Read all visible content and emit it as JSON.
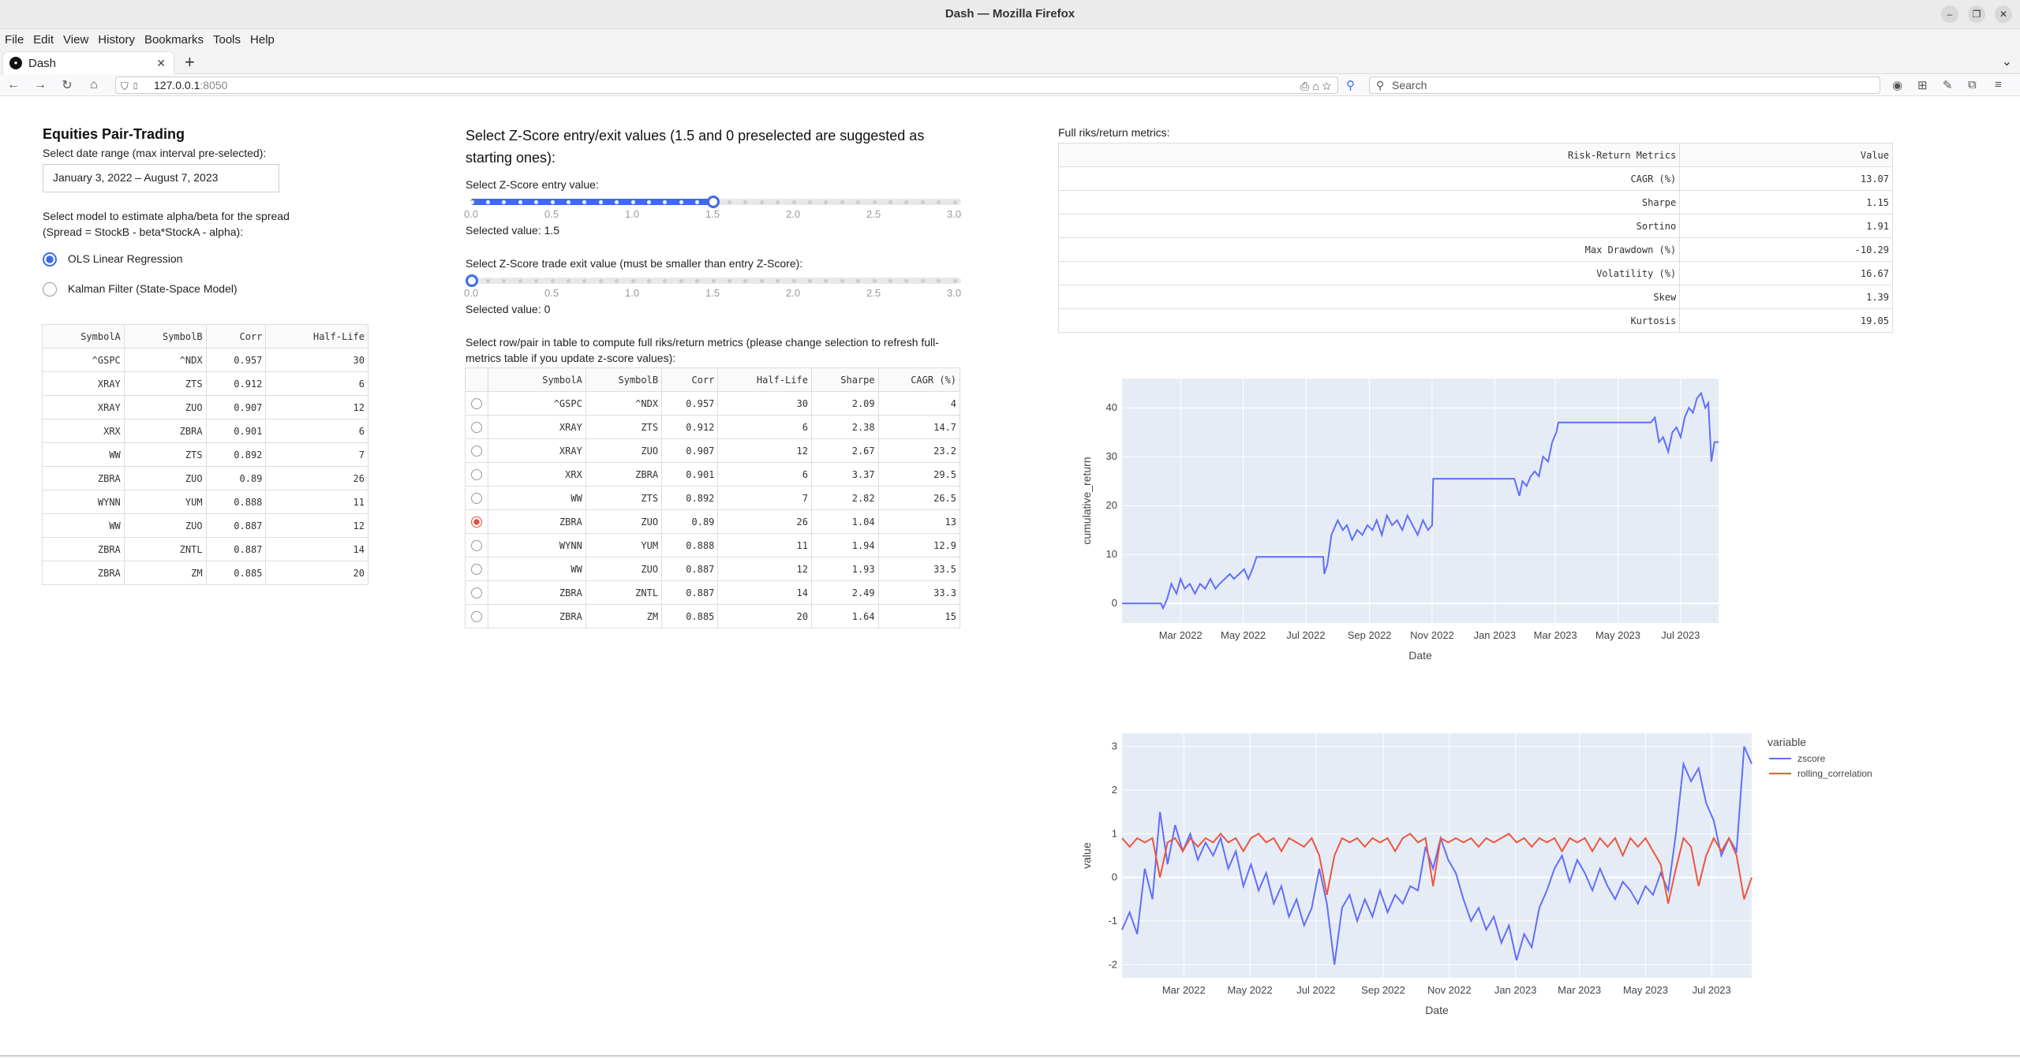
{
  "window": {
    "title": "Dash — Mozilla Firefox",
    "tab_title": "Dash",
    "url_host": "127.0.0.1",
    "url_port": ":8050",
    "search_placeholder": "Search"
  },
  "menu": [
    "File",
    "Edit",
    "View",
    "History",
    "Bookmarks",
    "Tools",
    "Help"
  ],
  "left": {
    "title": "Equities Pair-Trading",
    "date_label": "Select date range (max interval pre-selected):",
    "date_value": "January 3, 2022 – August 7, 2023",
    "model_label_1": "Select model to estimate alpha/beta for the spread",
    "model_label_2": "(Spread = StockB - beta*StockA - alpha):",
    "model_options": [
      "OLS Linear Regression",
      "Kalman Filter (State-Space Model)"
    ],
    "model_selected": 0,
    "table_headers": [
      "SymbolA",
      "SymbolB",
      "Corr",
      "Half-Life"
    ],
    "table_rows": [
      [
        "^GSPC",
        "^NDX",
        "0.957",
        "30"
      ],
      [
        "XRAY",
        "ZTS",
        "0.912",
        "6"
      ],
      [
        "XRAY",
        "ZUO",
        "0.907",
        "12"
      ],
      [
        "XRX",
        "ZBRA",
        "0.901",
        "6"
      ],
      [
        "WW",
        "ZTS",
        "0.892",
        "7"
      ],
      [
        "ZBRA",
        "ZUO",
        "0.89",
        "26"
      ],
      [
        "WYNN",
        "YUM",
        "0.888",
        "11"
      ],
      [
        "WW",
        "ZUO",
        "0.887",
        "12"
      ],
      [
        "ZBRA",
        "ZNTL",
        "0.887",
        "14"
      ],
      [
        "ZBRA",
        "ZM",
        "0.885",
        "20"
      ]
    ]
  },
  "middle": {
    "zscore_title": "Select Z-Score entry/exit values (1.5 and 0 preselected are suggested as starting ones):",
    "entry_label": "Select Z-Score entry value:",
    "entry_value": 1.5,
    "entry_selected_text": "Selected value: 1.5",
    "exit_label": "Select Z-Score trade exit value (must be smaller than entry Z-Score):",
    "exit_value": 0,
    "exit_selected_text": "Selected value: 0",
    "slider_ticks": [
      "0.0",
      "0.5",
      "1.0",
      "1.5",
      "2.0",
      "2.5",
      "3.0"
    ],
    "select_label": "Select row/pair in table to compute full riks/return metrics (please change selection to refresh full-metrics table if you update z-score values):",
    "table_headers": [
      "SymbolA",
      "SymbolB",
      "Corr",
      "Half-Life",
      "Sharpe",
      "CAGR (%)"
    ],
    "table_rows": [
      [
        "^GSPC",
        "^NDX",
        "0.957",
        "30",
        "2.09",
        "4"
      ],
      [
        "XRAY",
        "ZTS",
        "0.912",
        "6",
        "2.38",
        "14.7"
      ],
      [
        "XRAY",
        "ZUO",
        "0.907",
        "12",
        "2.67",
        "23.2"
      ],
      [
        "XRX",
        "ZBRA",
        "0.901",
        "6",
        "3.37",
        "29.5"
      ],
      [
        "WW",
        "ZTS",
        "0.892",
        "7",
        "2.82",
        "26.5"
      ],
      [
        "ZBRA",
        "ZUO",
        "0.89",
        "26",
        "1.04",
        "13"
      ],
      [
        "WYNN",
        "YUM",
        "0.888",
        "11",
        "1.94",
        "12.9"
      ],
      [
        "WW",
        "ZUO",
        "0.887",
        "12",
        "1.93",
        "33.5"
      ],
      [
        "ZBRA",
        "ZNTL",
        "0.887",
        "14",
        "2.49",
        "33.3"
      ],
      [
        "ZBRA",
        "ZM",
        "0.885",
        "20",
        "1.64",
        "15"
      ]
    ],
    "selected_row": 5
  },
  "right": {
    "metrics_label": "Full riks/return metrics:",
    "metrics_headers": [
      "Risk-Return Metrics",
      "Value"
    ],
    "metrics_rows": [
      [
        "CAGR (%)",
        "13.07"
      ],
      [
        "Sharpe",
        "1.15"
      ],
      [
        "Sortino",
        "1.91"
      ],
      [
        "Max Drawdown (%)",
        "-10.29"
      ],
      [
        "Volatility (%)",
        "16.67"
      ],
      [
        "Skew",
        "1.39"
      ],
      [
        "Kurtosis",
        "19.05"
      ]
    ]
  },
  "colors": {
    "accent": "#3f6ae8",
    "plot_bg": "#e5ecf6",
    "zscore": "#636efa",
    "rolling_correlation": "#ef553b"
  },
  "chart_data": [
    {
      "type": "line",
      "title": "",
      "xlabel": "Date",
      "ylabel": "cumulative_return",
      "xlim": [
        "2022-01-03",
        "2023-08-07"
      ],
      "ylim": [
        -4,
        46
      ],
      "x_ticks": [
        "Mar 2022",
        "May 2022",
        "Jul 2022",
        "Sep 2022",
        "Nov 2022",
        "Jan 2023",
        "Mar 2023",
        "May 2023",
        "Jul 2023"
      ],
      "x_tick_dates": [
        "2022-03-01",
        "2022-05-01",
        "2022-07-01",
        "2022-09-01",
        "2022-11-01",
        "2023-01-01",
        "2023-03-01",
        "2023-05-01",
        "2023-07-01"
      ],
      "y_ticks": [
        0,
        10,
        20,
        30,
        40
      ],
      "series": [
        {
          "x": [
            "2022-01-03",
            "2022-02-10",
            "2022-02-12",
            "2022-02-16",
            "2022-02-20",
            "2022-02-25",
            "2022-03-01",
            "2022-03-05",
            "2022-03-10",
            "2022-03-15",
            "2022-03-20",
            "2022-03-25",
            "2022-03-30",
            "2022-04-04",
            "2022-04-08",
            "2022-04-13",
            "2022-04-18",
            "2022-04-22",
            "2022-04-27",
            "2022-05-02",
            "2022-05-06",
            "2022-05-10",
            "2022-05-14",
            "2022-07-18",
            "2022-07-19",
            "2022-07-22",
            "2022-07-26",
            "2022-08-01",
            "2022-08-06",
            "2022-08-10",
            "2022-08-15",
            "2022-08-20",
            "2022-08-25",
            "2022-08-30",
            "2022-09-04",
            "2022-09-08",
            "2022-09-13",
            "2022-09-18",
            "2022-09-23",
            "2022-09-28",
            "2022-10-03",
            "2022-10-08",
            "2022-10-13",
            "2022-10-18",
            "2022-10-23",
            "2022-10-28",
            "2022-11-01",
            "2022-11-02",
            "2023-01-20",
            "2023-01-25",
            "2023-01-28",
            "2023-02-01",
            "2023-02-05",
            "2023-02-09",
            "2023-02-13",
            "2023-02-17",
            "2023-02-22",
            "2023-02-26",
            "2023-03-02",
            "2023-03-04",
            "2023-06-02",
            "2023-06-06",
            "2023-06-10",
            "2023-06-14",
            "2023-06-19",
            "2023-06-23",
            "2023-06-27",
            "2023-07-01",
            "2023-07-05",
            "2023-07-09",
            "2023-07-13",
            "2023-07-17",
            "2023-07-21",
            "2023-07-25",
            "2023-07-28",
            "2023-07-31",
            "2023-08-03",
            "2023-08-07"
          ],
          "y": [
            0,
            0,
            -1,
            1,
            4,
            2,
            5,
            3,
            4,
            2,
            4,
            3,
            5,
            3,
            4,
            5,
            6,
            5,
            6,
            7,
            5,
            7,
            9.5,
            9.5,
            6,
            8,
            14,
            17,
            15,
            16,
            13,
            15,
            14,
            16,
            15,
            17,
            14,
            18,
            16,
            17,
            15,
            18,
            16,
            14,
            17,
            15,
            16,
            25.5,
            25.5,
            22,
            25,
            24,
            26,
            27,
            26,
            30,
            29,
            33,
            35,
            37,
            37,
            38,
            33,
            34,
            31,
            35,
            36,
            34,
            38,
            40,
            39,
            42,
            43,
            40,
            41,
            29,
            33,
            33
          ]
        }
      ]
    },
    {
      "type": "line",
      "title": "",
      "xlabel": "Date",
      "ylabel": "value",
      "xlim": [
        "2022-01-03",
        "2023-08-07"
      ],
      "ylim": [
        -2.3,
        3.3
      ],
      "x_ticks": [
        "Mar 2022",
        "May 2022",
        "Jul 2022",
        "Sep 2022",
        "Nov 2022",
        "Jan 2023",
        "Mar 2023",
        "May 2023",
        "Jul 2023"
      ],
      "x_tick_dates": [
        "2022-03-01",
        "2022-05-01",
        "2022-07-01",
        "2022-09-01",
        "2022-11-01",
        "2023-01-01",
        "2023-03-01",
        "2023-05-01",
        "2023-07-01"
      ],
      "y_ticks": [
        -2,
        -1,
        0,
        1,
        2,
        3
      ],
      "legend_title": "variable",
      "legend_position": "top-right",
      "series": [
        {
          "name": "zscore",
          "x": [
            "2022-01-03",
            "2022-01-10",
            "2022-01-17",
            "2022-01-24",
            "2022-01-31",
            "2022-02-07",
            "2022-02-14",
            "2022-02-21",
            "2022-02-28",
            "2022-03-07",
            "2022-03-14",
            "2022-03-21",
            "2022-03-28",
            "2022-04-04",
            "2022-04-11",
            "2022-04-18",
            "2022-04-25",
            "2022-05-02",
            "2022-05-09",
            "2022-05-16",
            "2022-05-23",
            "2022-05-30",
            "2022-06-06",
            "2022-06-13",
            "2022-06-20",
            "2022-06-27",
            "2022-07-04",
            "2022-07-11",
            "2022-07-18",
            "2022-07-25",
            "2022-08-01",
            "2022-08-08",
            "2022-08-15",
            "2022-08-22",
            "2022-08-29",
            "2022-09-05",
            "2022-09-12",
            "2022-09-19",
            "2022-09-26",
            "2022-10-03",
            "2022-10-10",
            "2022-10-17",
            "2022-10-24",
            "2022-10-31",
            "2022-11-07",
            "2022-11-14",
            "2022-11-21",
            "2022-11-28",
            "2022-12-05",
            "2022-12-12",
            "2022-12-19",
            "2022-12-26",
            "2023-01-02",
            "2023-01-09",
            "2023-01-16",
            "2023-01-23",
            "2023-01-30",
            "2023-02-06",
            "2023-02-13",
            "2023-02-20",
            "2023-02-27",
            "2023-03-06",
            "2023-03-13",
            "2023-03-20",
            "2023-03-27",
            "2023-04-03",
            "2023-04-10",
            "2023-04-17",
            "2023-04-24",
            "2023-05-01",
            "2023-05-08",
            "2023-05-15",
            "2023-05-22",
            "2023-05-29",
            "2023-06-05",
            "2023-06-12",
            "2023-06-19",
            "2023-06-26",
            "2023-07-03",
            "2023-07-10",
            "2023-07-17",
            "2023-07-24",
            "2023-07-31",
            "2023-08-07"
          ],
          "y": [
            -1.2,
            -0.8,
            -1.3,
            0.2,
            -0.5,
            1.5,
            0.3,
            1.2,
            0.6,
            1.0,
            0.4,
            0.8,
            0.5,
            0.9,
            0.2,
            0.6,
            -0.2,
            0.3,
            -0.3,
            0.1,
            -0.6,
            -0.2,
            -0.9,
            -0.5,
            -1.1,
            -0.7,
            0.2,
            -0.6,
            -2.0,
            -0.7,
            -0.4,
            -1.0,
            -0.5,
            -0.9,
            -0.3,
            -0.8,
            -0.4,
            -0.6,
            -0.2,
            -0.3,
            0.7,
            0.2,
            0.9,
            0.4,
            0.1,
            -0.5,
            -1.0,
            -0.7,
            -1.2,
            -0.9,
            -1.5,
            -1.1,
            -1.9,
            -1.3,
            -1.6,
            -0.7,
            -0.3,
            0.2,
            0.5,
            -0.1,
            0.4,
            0.1,
            -0.3,
            0.2,
            -0.2,
            -0.5,
            -0.1,
            -0.3,
            -0.6,
            -0.2,
            -0.4,
            0.1,
            -0.3,
            1.0,
            2.6,
            2.2,
            2.5,
            1.7,
            1.3,
            0.5,
            0.9,
            0.6,
            3.0,
            2.6
          ]
        },
        {
          "name": "rolling_correlation",
          "x": [
            "2022-01-03",
            "2022-01-10",
            "2022-01-17",
            "2022-01-24",
            "2022-01-31",
            "2022-02-07",
            "2022-02-14",
            "2022-02-21",
            "2022-02-28",
            "2022-03-07",
            "2022-03-14",
            "2022-03-21",
            "2022-03-28",
            "2022-04-04",
            "2022-04-11",
            "2022-04-18",
            "2022-04-25",
            "2022-05-02",
            "2022-05-09",
            "2022-05-16",
            "2022-05-23",
            "2022-05-30",
            "2022-06-06",
            "2022-06-13",
            "2022-06-20",
            "2022-06-27",
            "2022-07-04",
            "2022-07-11",
            "2022-07-18",
            "2022-07-25",
            "2022-08-01",
            "2022-08-08",
            "2022-08-15",
            "2022-08-22",
            "2022-08-29",
            "2022-09-05",
            "2022-09-12",
            "2022-09-19",
            "2022-09-26",
            "2022-10-03",
            "2022-10-10",
            "2022-10-17",
            "2022-10-24",
            "2022-10-31",
            "2022-11-07",
            "2022-11-14",
            "2022-11-21",
            "2022-11-28",
            "2022-12-05",
            "2022-12-12",
            "2022-12-19",
            "2022-12-26",
            "2023-01-02",
            "2023-01-09",
            "2023-01-16",
            "2023-01-23",
            "2023-01-30",
            "2023-02-06",
            "2023-02-13",
            "2023-02-20",
            "2023-02-27",
            "2023-03-06",
            "2023-03-13",
            "2023-03-20",
            "2023-03-27",
            "2023-04-03",
            "2023-04-10",
            "2023-04-17",
            "2023-04-24",
            "2023-05-01",
            "2023-05-08",
            "2023-05-15",
            "2023-05-22",
            "2023-05-29",
            "2023-06-05",
            "2023-06-12",
            "2023-06-19",
            "2023-06-26",
            "2023-07-03",
            "2023-07-10",
            "2023-07-17",
            "2023-07-24",
            "2023-07-31",
            "2023-08-07"
          ],
          "y": [
            0.9,
            0.7,
            0.9,
            0.8,
            0.9,
            0.0,
            0.8,
            0.9,
            0.6,
            0.9,
            0.7,
            0.9,
            0.8,
            1.0,
            0.8,
            0.9,
            0.6,
            0.9,
            1.0,
            0.8,
            0.9,
            0.6,
            0.9,
            0.8,
            0.7,
            0.9,
            0.5,
            -0.4,
            0.5,
            0.9,
            0.8,
            0.9,
            0.7,
            0.9,
            0.8,
            0.9,
            0.6,
            0.9,
            1.0,
            0.8,
            0.9,
            -0.2,
            0.9,
            0.8,
            0.9,
            0.8,
            0.9,
            0.7,
            0.9,
            0.8,
            0.9,
            1.0,
            0.8,
            0.9,
            0.7,
            0.9,
            0.8,
            0.9,
            0.6,
            0.9,
            0.8,
            0.9,
            0.6,
            0.9,
            0.7,
            0.9,
            0.5,
            0.9,
            0.7,
            0.9,
            0.6,
            0.3,
            -0.6,
            0.2,
            0.9,
            0.7,
            -0.2,
            0.5,
            0.9,
            0.6,
            0.9,
            0.5,
            -0.5,
            0.0
          ]
        }
      ]
    }
  ]
}
